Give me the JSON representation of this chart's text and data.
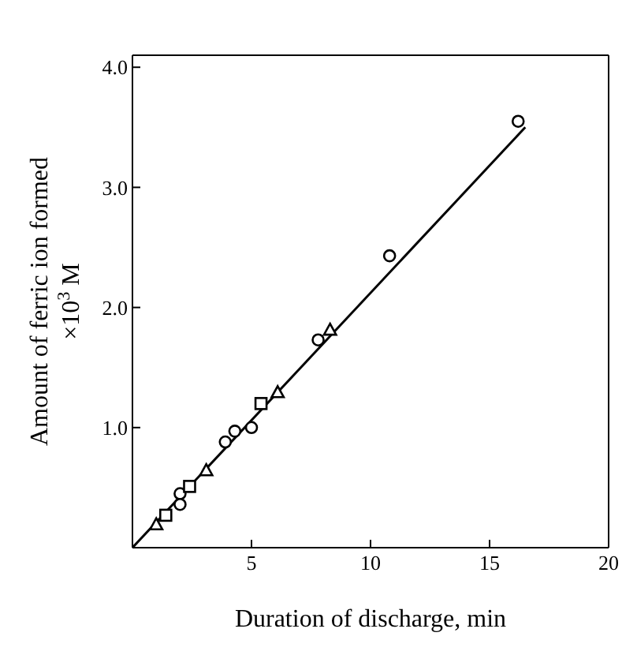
{
  "chart_data": {
    "type": "scatter",
    "xlabel": "Duration of discharge, min",
    "ylabel": "Amount of ferric ion formed\n×10$^{3}$ M",
    "xlim": [
      0,
      20
    ],
    "ylim": [
      0,
      4.1
    ],
    "xticks": [
      5,
      10,
      15,
      20
    ],
    "yticks": [
      {
        "value": 1,
        "label": "1.0"
      },
      {
        "value": 2,
        "label": "2.0"
      },
      {
        "value": 3,
        "label": "3.0"
      },
      {
        "value": 4,
        "label": "4.0"
      }
    ],
    "series": [
      {
        "marker": "circle",
        "color": "#000000",
        "x": [
          2.0,
          2.0,
          3.9,
          4.3,
          5.0,
          7.8,
          10.8,
          16.2
        ],
        "values": [
          0.45,
          0.36,
          0.88,
          0.97,
          1.0,
          1.73,
          2.43,
          3.55
        ]
      },
      {
        "marker": "square",
        "color": "#000000",
        "x": [
          1.4,
          2.4,
          5.4
        ],
        "values": [
          0.27,
          0.51,
          1.2
        ]
      },
      {
        "marker": "triangle",
        "color": "#000000",
        "x": [
          1.0,
          3.1,
          6.1,
          8.3
        ],
        "values": [
          0.19,
          0.64,
          1.29,
          1.81
        ]
      },
      {
        "type": "line",
        "marker": "none",
        "line_style": "solid",
        "color": "#000000",
        "x": [
          0,
          16.5
        ],
        "values": [
          0,
          3.5
        ]
      }
    ]
  }
}
